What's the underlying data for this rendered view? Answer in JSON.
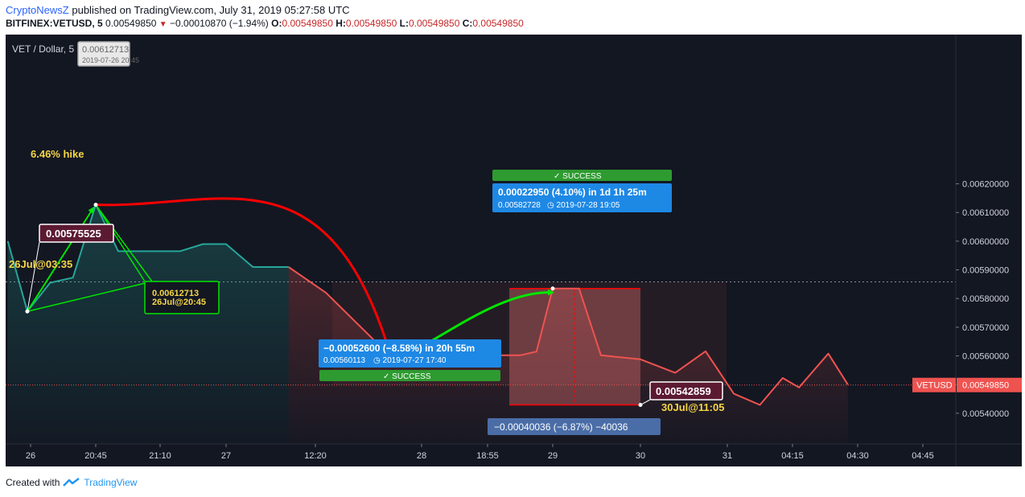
{
  "header": {
    "brand": "CryptoNewsZ",
    "published": " published on TradingView.com, July 31, 2019 05:27:58 UTC",
    "symbol": "BITFINEX:VETUSD, 5",
    "last": "0.00549850",
    "change": "−0.00010870 (−1.94%)",
    "o_label": "O:",
    "o": "0.00549850",
    "h_label": "H:",
    "h": "0.00549850",
    "l_label": "L:",
    "l": "0.00549850",
    "c_label": "C:",
    "c": "0.00549850"
  },
  "footer": {
    "created": "Created with",
    "tv": "TradingView"
  },
  "colors": {
    "background": "#131722",
    "teal": "#26a69a",
    "coral": "#ef5350",
    "green": "#00e600",
    "red": "#ff0000",
    "blue": "#1e88e5",
    "success_green": "#2e9b30"
  },
  "chart_data": {
    "type": "line",
    "pair_label": "VET / Dollar, 5",
    "ylim": [
      0.00535,
      0.00622
    ],
    "y_ticks": [
      "0.00620000",
      "0.00610000",
      "0.00600000",
      "0.00590000",
      "0.00580000",
      "0.00570000",
      "0.00560000",
      "0.00550000",
      "0.00540000"
    ],
    "y_tick_values": [
      0.0062,
      0.0061,
      0.006,
      0.0059,
      0.0058,
      0.0057,
      0.0056,
      0.0055,
      0.0054
    ],
    "x_ticks": [
      "26",
      "20:45",
      "21:10",
      "27",
      "12:20",
      "28",
      "18:55",
      "29",
      "30",
      "31",
      "04:15",
      "04:30",
      "04:45"
    ],
    "x_tick_index": [
      0,
      1,
      2,
      3,
      4,
      5,
      6,
      7,
      8,
      9,
      10,
      11,
      12
    ],
    "series": [
      {
        "color": "#26a69a",
        "points": [
          [
            -0.35,
            0.006
          ],
          [
            -0.05,
            0.005755
          ],
          [
            0.3,
            0.005855
          ],
          [
            0.65,
            0.005873
          ],
          [
            1.0,
            0.006127
          ],
          [
            1.35,
            0.005965
          ],
          [
            2.3,
            0.005965
          ],
          [
            2.65,
            0.00599
          ],
          [
            3.0,
            0.00599
          ],
          [
            3.3,
            0.00591
          ],
          [
            3.7,
            0.00591
          ]
        ]
      },
      {
        "color": "#ef5350",
        "points": [
          [
            3.7,
            0.00591
          ],
          [
            4.1,
            0.00582
          ],
          [
            4.7,
            0.005601
          ],
          [
            5.7,
            0.005602
          ],
          [
            6.5,
            0.005602
          ],
          [
            6.75,
            0.005615
          ],
          [
            7.0,
            0.005835
          ],
          [
            7.3,
            0.005835
          ],
          [
            7.55,
            0.005602
          ],
          [
            8.0,
            0.005588
          ],
          [
            8.4,
            0.005541
          ],
          [
            8.75,
            0.005616
          ],
          [
            9.1,
            0.005468
          ],
          [
            9.5,
            0.005429
          ],
          [
            9.85,
            0.005523
          ],
          [
            10.1,
            0.00549
          ],
          [
            10.55,
            0.005608
          ],
          [
            10.85,
            0.0055
          ]
        ]
      }
    ],
    "current_price": 0.0054985,
    "current_label": "VETUSD",
    "current_value": "0.00549850",
    "dotted_level": 0.005858,
    "annotations": {
      "hike": "6.46% hike",
      "low1_value": "0.00575525",
      "low1_time": "26Jul@03:35",
      "high_value": "0.00612713",
      "high_time": "26Jul@20:45",
      "tooltip_value": "0.00612713",
      "tooltip_time": "2019-07-26 20:45",
      "drop_main": "−0.00052600 (−8.58%) in 20h 55m",
      "drop_sub_price": "0.00560113",
      "drop_sub_time": "2019-07-27  17:40",
      "success": "SUCCESS",
      "rise_main": "0.00022950 (4.10%) in 1d 1h 25m",
      "rise_sub_price": "0.00582728",
      "rise_sub_time": "2019-07-28  19:05",
      "range_label": "−0.00040036 (−6.87%) −40036",
      "low2_value": "0.00542859",
      "low2_time": "30Jul@11:05"
    }
  }
}
